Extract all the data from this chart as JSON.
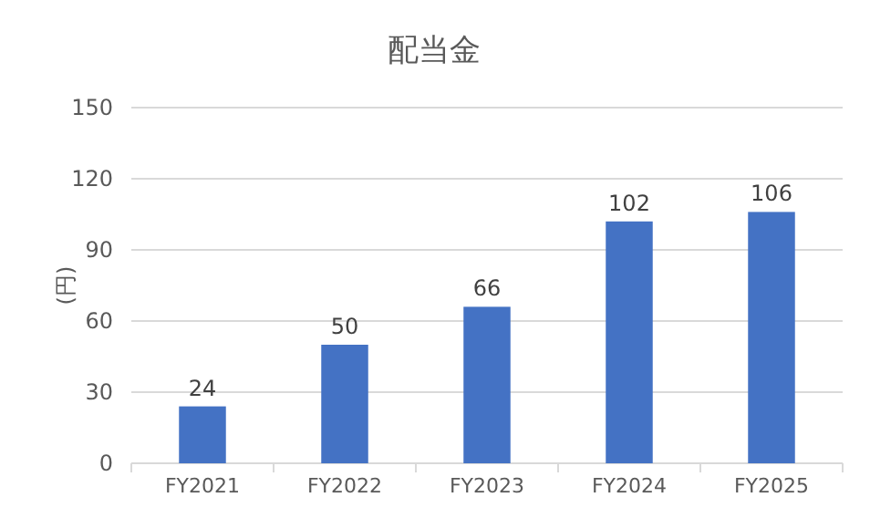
{
  "chart_data": {
    "type": "bar",
    "title": "配当金",
    "ylabel": "(円)",
    "categories": [
      "FY2021",
      "FY2022",
      "FY2023",
      "FY2024",
      "FY2025"
    ],
    "values": [
      24,
      50,
      66,
      102,
      106
    ],
    "color": "#4472c4",
    "ylim": [
      0,
      150
    ],
    "yticks": [
      0,
      30,
      60,
      90,
      120,
      150
    ],
    "grid": "y",
    "data_labels": true
  }
}
